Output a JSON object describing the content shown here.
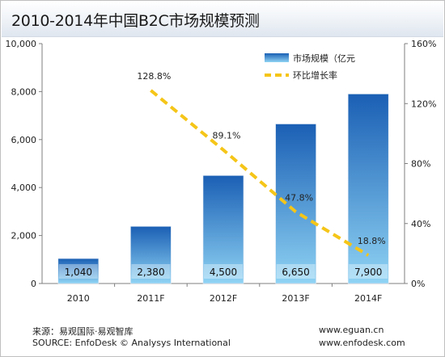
{
  "title": "2010-2014年中国B2C市场规模预测",
  "footer": {
    "source_cn": "来源：易观国际·易观智库",
    "source_en": "SOURCE: EnfoDesk © Analysys International",
    "url1": "www.eguan.cn",
    "url2": "www.enfodesk.com"
  },
  "colors": {
    "bar_top": "#1a5fb4",
    "bar_bottom": "#8fd3f4",
    "line": "#f5c518",
    "title_band": "#e8edf3"
  },
  "chart_data": {
    "type": "bar",
    "categories": [
      "2010",
      "2011F",
      "2012F",
      "2013F",
      "2014F"
    ],
    "series": [
      {
        "name": "市场规模（亿元",
        "type": "bar",
        "axis": "left",
        "values": [
          1040,
          2380,
          4500,
          6650,
          7900
        ],
        "labels": [
          "1,040",
          "2,380",
          "4,500",
          "6,650",
          "7,900"
        ]
      },
      {
        "name": "环比增长率",
        "type": "line",
        "axis": "right",
        "style": "dashed",
        "values": [
          null,
          128.8,
          89.1,
          47.8,
          18.8
        ],
        "labels": [
          "",
          "128.8%",
          "89.1%",
          "47.8%",
          "18.8%"
        ]
      }
    ],
    "ylim": [
      0,
      10000
    ],
    "yticks": [
      "0",
      "2,000",
      "4,000",
      "6,000",
      "8,000",
      "10,000"
    ],
    "ylim_right": [
      0,
      160
    ],
    "yticks_right": [
      "0%",
      "40%",
      "80%",
      "120%",
      "160%"
    ],
    "grid": false,
    "legend": "top-right"
  }
}
